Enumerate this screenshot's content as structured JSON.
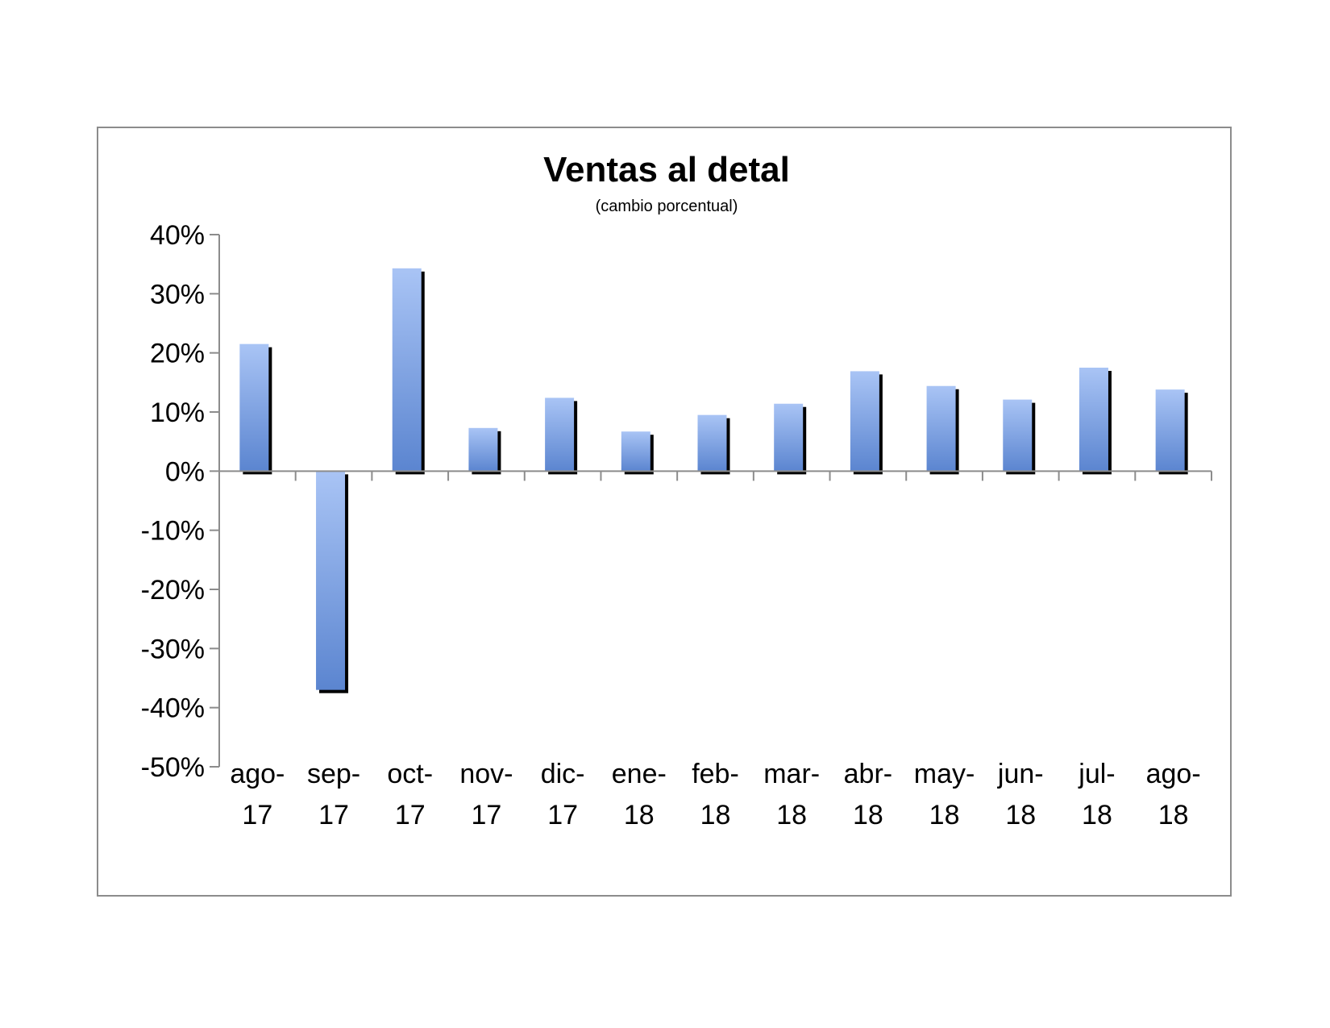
{
  "chart_data": {
    "type": "bar",
    "title": "Ventas al detal",
    "subtitle": "(cambio porcentual)",
    "categories": [
      [
        "ago-",
        "17"
      ],
      [
        "sep-",
        "17"
      ],
      [
        "oct-",
        "17"
      ],
      [
        "nov-",
        "17"
      ],
      [
        "dic-",
        "17"
      ],
      [
        "ene-",
        "18"
      ],
      [
        "feb-",
        "18"
      ],
      [
        "mar-",
        "18"
      ],
      [
        "abr-",
        "18"
      ],
      [
        "may-",
        "18"
      ],
      [
        "jun-",
        "18"
      ],
      [
        "jul-",
        "18"
      ],
      [
        "ago-",
        "18"
      ]
    ],
    "values": [
      21.5,
      -37.0,
      34.3,
      7.3,
      12.4,
      6.7,
      9.5,
      11.4,
      16.9,
      14.4,
      12.1,
      17.5,
      13.8
    ],
    "value_unit": "percent",
    "ylim": [
      -50,
      40
    ],
    "yticks": [
      40,
      30,
      20,
      10,
      0,
      -10,
      -20,
      -30,
      -40,
      -50
    ],
    "ytick_labels": [
      "40%",
      "30%",
      "20%",
      "10%",
      "0%",
      "-10%",
      "-20%",
      "-30%",
      "-40%",
      "-50%"
    ],
    "xlabel": "",
    "ylabel": "",
    "grid": false,
    "legend": "none",
    "colors": {
      "bar_light": "#a9c4f5",
      "bar_dark": "#5b85d0",
      "bar_shadow": "#000000",
      "axis": "#8c8c8c",
      "frame": "#8c8c8c"
    }
  }
}
